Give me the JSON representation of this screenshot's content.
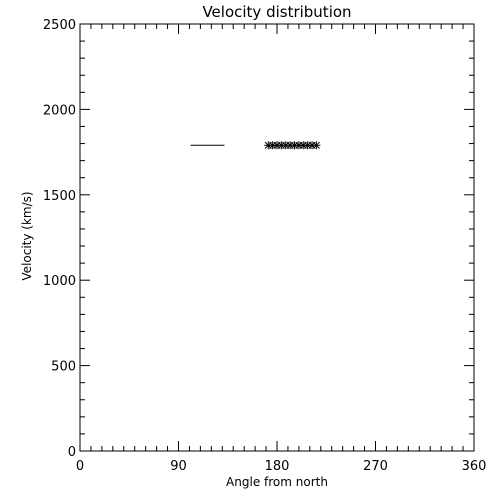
{
  "chart_data": {
    "type": "scatter",
    "title": "Velocity distribution",
    "xlabel": "Angle from north",
    "ylabel": "Velocity (km/s)",
    "xlim": [
      0,
      360
    ],
    "ylim": [
      0,
      2500
    ],
    "xticks": [
      0,
      90,
      180,
      270,
      360
    ],
    "yticks": [
      0,
      500,
      1000,
      1500,
      2000,
      2500
    ],
    "x_minor_step": 10,
    "y_minor_step": 100,
    "grid": false,
    "line_segments": [
      {
        "x": [
          101,
          132
        ],
        "y": [
          1790,
          1790
        ]
      }
    ],
    "points": [
      {
        "x": 172,
        "y": 1790
      },
      {
        "x": 176,
        "y": 1790
      },
      {
        "x": 180,
        "y": 1790
      },
      {
        "x": 184,
        "y": 1790
      },
      {
        "x": 188,
        "y": 1790
      },
      {
        "x": 192,
        "y": 1790
      },
      {
        "x": 196,
        "y": 1790
      },
      {
        "x": 200,
        "y": 1790
      },
      {
        "x": 204,
        "y": 1790
      },
      {
        "x": 208,
        "y": 1790
      },
      {
        "x": 212,
        "y": 1790
      },
      {
        "x": 216,
        "y": 1790
      }
    ],
    "marker": "asterisk",
    "colors": {
      "foreground": "#000000",
      "background": "#ffffff"
    }
  }
}
